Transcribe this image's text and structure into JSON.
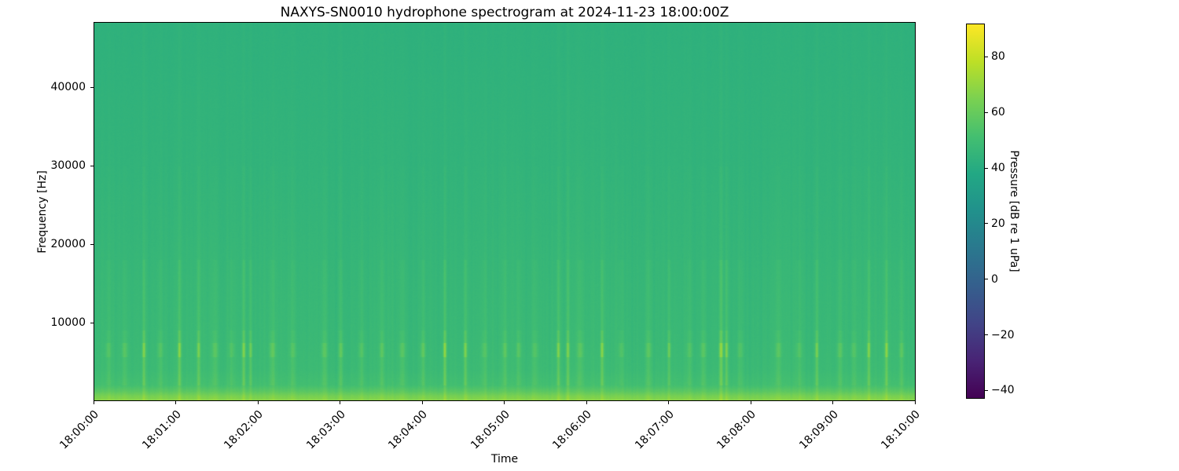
{
  "chart_data": {
    "type": "heatmap",
    "subtype": "hydrophone-spectrogram",
    "title": "NAXYS-SN0010 hydrophone spectrogram at 2024-11-23 18:00:00Z",
    "xlabel": "Time",
    "ylabel": "Frequency [Hz]",
    "x_axis": {
      "tick_labels": [
        "18:00:00",
        "18:01:00",
        "18:02:00",
        "18:03:00",
        "18:04:00",
        "18:05:00",
        "18:06:00",
        "18:07:00",
        "18:08:00",
        "18:09:00",
        "18:10:00"
      ],
      "range_seconds": [
        0,
        600
      ],
      "tick_rotation_deg": 45
    },
    "y_axis": {
      "tick_labels": [
        "10000",
        "20000",
        "30000",
        "40000"
      ],
      "tick_values": [
        10000,
        20000,
        30000,
        40000
      ],
      "range_hz": [
        0,
        48300
      ]
    },
    "colorbar": {
      "label": "Pressure [dB re 1 uPa]",
      "tick_labels": [
        "80",
        "60",
        "40",
        "20",
        "0",
        "−20",
        "−40"
      ],
      "tick_values": [
        80,
        60,
        40,
        20,
        0,
        -20,
        -40
      ],
      "vmin": -43,
      "vmax": 92,
      "colormap": "viridis",
      "stops": [
        "#440154",
        "#482475",
        "#414487",
        "#355f8d",
        "#2a788e",
        "#21918c",
        "#22a884",
        "#44bf70",
        "#7ad151",
        "#bddf26",
        "#fde725"
      ]
    },
    "field_model": {
      "comment": "procedural model of the rendered spectrogram pixels: ambient dB vs frequency, per-column noise streaks, transient events with bright dots near 6.5 kHz",
      "seed": 1123,
      "jitter_db": 1.2,
      "column_noise_db": 1.6,
      "base_profile_hz_db": [
        [
          0,
          68
        ],
        [
          600,
          64
        ],
        [
          1200,
          57
        ],
        [
          2000,
          51
        ],
        [
          4000,
          48.5
        ],
        [
          8000,
          47.5
        ],
        [
          12000,
          47
        ],
        [
          16000,
          46.5
        ],
        [
          22000,
          45.5
        ],
        [
          30000,
          44.5
        ],
        [
          38000,
          44
        ],
        [
          44000,
          43.5
        ],
        [
          48300,
          43.2
        ]
      ],
      "low_freq_weight": {
        "full_below_hz": 9000,
        "falloff_hz": 34000,
        "drop": 0.75,
        "min": 0.25
      },
      "event_shape_bands": [
        [
          0,
          2000,
          0.5
        ],
        [
          2000,
          9000,
          1.0
        ],
        [
          9000,
          18000,
          0.55
        ],
        [
          18000,
          30000,
          0.22
        ],
        [
          30000,
          48300,
          0.1
        ]
      ],
      "dot_band": [
        5600,
        7400,
        0.9
      ],
      "events_t_amp_sigma": [
        [
          36,
          10,
          0.8
        ],
        [
          62,
          11,
          0.8
        ],
        [
          76,
          9,
          0.8
        ],
        [
          109,
          10,
          0.8
        ],
        [
          114,
          8,
          0.8
        ],
        [
          256,
          12,
          0.8
        ],
        [
          271,
          10,
          0.8
        ],
        [
          339,
          10,
          0.8
        ],
        [
          346,
          9,
          0.8
        ],
        [
          371,
          11,
          0.8
        ],
        [
          420,
          8,
          0.8
        ],
        [
          458,
          12,
          1.0
        ],
        [
          462,
          10,
          0.8
        ],
        [
          528,
          9,
          0.8
        ],
        [
          566,
          10,
          0.8
        ],
        [
          579,
          11,
          0.8
        ],
        [
          10,
          4,
          1.5
        ],
        [
          22,
          5,
          1.5
        ],
        [
          48,
          4,
          1.5
        ],
        [
          88,
          5,
          1.5
        ],
        [
          100,
          4,
          1.5
        ],
        [
          130,
          6,
          1.5
        ],
        [
          145,
          4,
          1.5
        ],
        [
          168,
          5,
          1.5
        ],
        [
          180,
          6,
          1.2
        ],
        [
          195,
          4,
          1.5
        ],
        [
          210,
          5,
          1.2
        ],
        [
          225,
          5,
          1.5
        ],
        [
          240,
          6,
          1.2
        ],
        [
          285,
          4,
          1.5
        ],
        [
          300,
          5,
          1.2
        ],
        [
          310,
          5,
          1.2
        ],
        [
          322,
          4,
          1.5
        ],
        [
          355,
          5,
          1.5
        ],
        [
          385,
          4,
          1.5
        ],
        [
          405,
          5,
          1.5
        ],
        [
          435,
          4,
          1.5
        ],
        [
          445,
          5,
          1.5
        ],
        [
          472,
          4,
          1.5
        ],
        [
          500,
          5,
          1.5
        ],
        [
          515,
          4,
          1.5
        ],
        [
          545,
          5,
          1.5
        ],
        [
          555,
          4,
          1.5
        ],
        [
          590,
          5,
          1.2
        ]
      ]
    }
  },
  "layout_colors": {
    "figure_background": "#ffffff",
    "axis_color": "#000000"
  }
}
